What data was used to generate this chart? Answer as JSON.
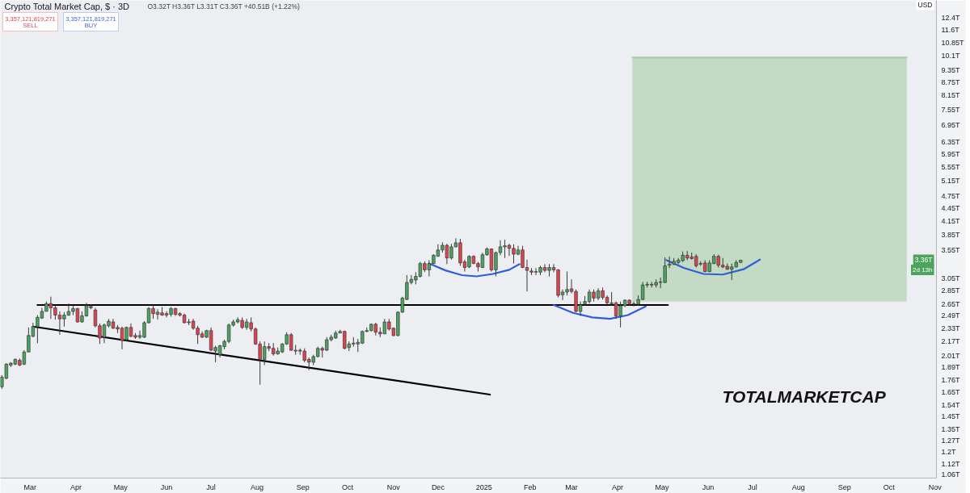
{
  "chart_data": {
    "type": "candlestick",
    "title": "Crypto Total Market Cap, $ · 3D",
    "subtitle": "O3.32T H3.36T L3.31T C3.36T +40.51B (+1.22%)",
    "ylabel": "USD",
    "x": [
      "2024-02-11",
      "2024-02-14",
      "2024-02-17",
      "2024-02-20",
      "2024-02-23",
      "2024-02-26",
      "2024-02-29",
      "2024-03-03",
      "2024-03-06",
      "2024-03-09",
      "2024-03-12",
      "2024-03-15",
      "2024-03-18",
      "2024-03-21",
      "2024-03-24",
      "2024-03-27",
      "2024-03-30",
      "2024-04-02",
      "2024-04-05",
      "2024-04-08",
      "2024-04-11",
      "2024-04-14",
      "2024-04-17",
      "2024-04-20",
      "2024-04-23",
      "2024-04-26",
      "2024-04-29",
      "2024-05-02",
      "2024-05-05",
      "2024-05-08",
      "2024-05-11",
      "2024-05-14",
      "2024-05-17",
      "2024-05-20",
      "2024-05-23",
      "2024-05-26",
      "2024-05-29",
      "2024-06-01",
      "2024-06-04",
      "2024-06-07",
      "2024-06-10",
      "2024-06-13",
      "2024-06-16",
      "2024-06-19",
      "2024-06-22",
      "2024-06-25",
      "2024-06-28",
      "2024-07-01",
      "2024-07-04",
      "2024-07-07",
      "2024-07-10",
      "2024-07-13",
      "2024-07-16",
      "2024-07-19",
      "2024-07-22",
      "2024-07-25",
      "2024-07-28",
      "2024-07-31",
      "2024-08-03",
      "2024-08-06",
      "2024-08-09",
      "2024-08-12",
      "2024-08-15",
      "2024-08-18",
      "2024-08-21",
      "2024-08-24",
      "2024-08-27",
      "2024-08-30",
      "2024-09-02",
      "2024-09-05",
      "2024-09-08",
      "2024-09-11",
      "2024-09-14",
      "2024-09-17",
      "2024-09-20",
      "2024-09-23",
      "2024-09-26",
      "2024-09-29",
      "2024-10-02",
      "2024-10-05",
      "2024-10-08",
      "2024-10-11",
      "2024-10-14",
      "2024-10-17",
      "2024-10-20",
      "2024-10-23",
      "2024-10-26",
      "2024-10-29",
      "2024-11-01",
      "2024-11-04",
      "2024-11-07",
      "2024-11-10",
      "2024-11-13",
      "2024-11-16",
      "2024-11-19",
      "2024-11-22",
      "2024-11-25",
      "2024-11-28",
      "2024-12-01",
      "2024-12-04",
      "2024-12-07",
      "2024-12-10",
      "2024-12-13",
      "2024-12-16",
      "2024-12-19",
      "2024-12-22",
      "2024-12-25",
      "2024-12-28",
      "2024-12-31",
      "2025-01-03",
      "2025-01-06",
      "2025-01-09",
      "2025-01-12",
      "2025-01-15",
      "2025-01-18",
      "2025-01-21",
      "2025-01-24",
      "2025-01-27",
      "2025-01-30",
      "2025-02-02",
      "2025-02-05",
      "2025-02-08",
      "2025-02-11",
      "2025-02-14",
      "2025-02-17",
      "2025-02-20",
      "2025-02-23",
      "2025-02-26",
      "2025-03-01",
      "2025-03-04",
      "2025-03-07",
      "2025-03-10",
      "2025-03-13",
      "2025-03-16",
      "2025-03-19",
      "2025-03-22",
      "2025-03-25",
      "2025-03-28",
      "2025-03-31",
      "2025-04-03",
      "2025-04-06",
      "2025-04-09",
      "2025-04-12",
      "2025-04-15",
      "2025-04-18",
      "2025-04-21",
      "2025-04-24",
      "2025-04-27",
      "2025-04-30",
      "2025-05-03",
      "2025-05-06",
      "2025-05-09",
      "2025-05-12",
      "2025-05-15",
      "2025-05-18",
      "2025-05-21",
      "2025-05-24",
      "2025-05-27",
      "2025-05-30",
      "2025-06-02",
      "2025-06-05",
      "2025-06-08",
      "2025-06-11",
      "2025-06-14",
      "2025-06-17",
      "2025-06-20",
      "2025-06-23"
    ],
    "ohlc": [
      [
        1.7,
        1.81,
        1.68,
        1.79
      ],
      [
        1.78,
        1.93,
        1.77,
        1.92
      ],
      [
        1.91,
        1.94,
        1.89,
        1.93
      ],
      [
        1.92,
        1.98,
        1.91,
        1.97
      ],
      [
        1.96,
        1.98,
        1.9,
        1.91
      ],
      [
        1.92,
        2.07,
        1.91,
        2.05
      ],
      [
        2.05,
        2.34,
        2.05,
        2.24
      ],
      [
        2.23,
        2.4,
        2.22,
        2.35
      ],
      [
        2.35,
        2.5,
        2.15,
        2.47
      ],
      [
        2.46,
        2.6,
        2.45,
        2.55
      ],
      [
        2.55,
        2.69,
        2.55,
        2.66
      ],
      [
        2.66,
        2.76,
        2.45,
        2.6
      ],
      [
        2.6,
        2.63,
        2.44,
        2.5
      ],
      [
        2.5,
        2.55,
        2.25,
        2.45
      ],
      [
        2.45,
        2.54,
        2.35,
        2.5
      ],
      [
        2.5,
        2.66,
        2.49,
        2.55
      ],
      [
        2.55,
        2.63,
        2.5,
        2.59
      ],
      [
        2.59,
        2.6,
        2.4,
        2.41
      ],
      [
        2.41,
        2.55,
        2.4,
        2.49
      ],
      [
        2.49,
        2.67,
        2.48,
        2.63
      ],
      [
        2.62,
        2.65,
        2.58,
        2.6
      ],
      [
        2.57,
        2.6,
        2.34,
        2.36
      ],
      [
        2.36,
        2.39,
        2.14,
        2.21
      ],
      [
        2.22,
        2.39,
        2.15,
        2.37
      ],
      [
        2.36,
        2.45,
        2.34,
        2.42
      ],
      [
        2.41,
        2.45,
        2.32,
        2.33
      ],
      [
        2.34,
        2.37,
        2.27,
        2.32
      ],
      [
        2.33,
        2.35,
        2.08,
        2.18
      ],
      [
        2.19,
        2.35,
        2.17,
        2.34
      ],
      [
        2.34,
        2.39,
        2.22,
        2.23
      ],
      [
        2.24,
        2.27,
        2.2,
        2.22
      ],
      [
        2.22,
        2.3,
        2.2,
        2.24
      ],
      [
        2.22,
        2.42,
        2.21,
        2.4
      ],
      [
        2.4,
        2.61,
        2.39,
        2.59
      ],
      [
        2.59,
        2.63,
        2.45,
        2.52
      ],
      [
        2.51,
        2.58,
        2.44,
        2.54
      ],
      [
        2.53,
        2.61,
        2.49,
        2.5
      ],
      [
        2.52,
        2.55,
        2.47,
        2.5
      ],
      [
        2.51,
        2.61,
        2.48,
        2.59
      ],
      [
        2.59,
        2.6,
        2.49,
        2.51
      ],
      [
        2.52,
        2.54,
        2.48,
        2.5
      ],
      [
        2.5,
        2.52,
        2.39,
        2.4
      ],
      [
        2.4,
        2.45,
        2.37,
        2.41
      ],
      [
        2.42,
        2.45,
        2.31,
        2.33
      ],
      [
        2.33,
        2.36,
        2.14,
        2.25
      ],
      [
        2.26,
        2.29,
        2.21,
        2.22
      ],
      [
        2.22,
        2.31,
        2.21,
        2.3
      ],
      [
        2.3,
        2.34,
        2.06,
        2.07
      ],
      [
        2.06,
        2.12,
        1.94,
        2.1
      ],
      [
        2.02,
        2.13,
        1.99,
        2.12
      ],
      [
        2.11,
        2.19,
        2.08,
        2.17
      ],
      [
        2.17,
        2.39,
        2.15,
        2.37
      ],
      [
        2.37,
        2.44,
        2.35,
        2.41
      ],
      [
        2.41,
        2.47,
        2.39,
        2.44
      ],
      [
        2.43,
        2.47,
        2.32,
        2.34
      ],
      [
        2.34,
        2.45,
        2.31,
        2.41
      ],
      [
        2.4,
        2.47,
        2.29,
        2.32
      ],
      [
        2.32,
        2.34,
        2.13,
        2.14
      ],
      [
        2.14,
        2.17,
        1.72,
        1.97
      ],
      [
        1.97,
        2.17,
        1.91,
        2.11
      ],
      [
        2.11,
        2.15,
        2.06,
        2.09
      ],
      [
        2.09,
        2.15,
        2.01,
        2.03
      ],
      [
        2.03,
        2.1,
        2.02,
        2.06
      ],
      [
        2.05,
        2.15,
        2.04,
        2.14
      ],
      [
        2.14,
        2.28,
        2.13,
        2.25
      ],
      [
        2.25,
        2.27,
        2.06,
        2.07
      ],
      [
        2.06,
        2.13,
        2.02,
        2.07
      ],
      [
        2.07,
        2.09,
        2.02,
        2.06
      ],
      [
        2.06,
        2.09,
        1.94,
        1.96
      ],
      [
        1.97,
        1.99,
        1.86,
        1.94
      ],
      [
        1.94,
        2.02,
        1.91,
        2.0
      ],
      [
        2.0,
        2.11,
        1.99,
        2.09
      ],
      [
        2.09,
        2.11,
        1.99,
        2.07
      ],
      [
        2.07,
        2.22,
        2.06,
        2.19
      ],
      [
        2.19,
        2.25,
        2.17,
        2.22
      ],
      [
        2.21,
        2.3,
        2.2,
        2.27
      ],
      [
        2.27,
        2.31,
        2.27,
        2.29
      ],
      [
        2.29,
        2.3,
        2.08,
        2.09
      ],
      [
        2.1,
        2.17,
        2.06,
        2.14
      ],
      [
        2.14,
        2.22,
        2.11,
        2.15
      ],
      [
        2.14,
        2.2,
        2.05,
        2.16
      ],
      [
        2.15,
        2.3,
        2.14,
        2.29
      ],
      [
        2.29,
        2.34,
        2.28,
        2.3
      ],
      [
        2.3,
        2.39,
        2.29,
        2.38
      ],
      [
        2.38,
        2.4,
        2.24,
        2.28
      ],
      [
        2.28,
        2.34,
        2.22,
        2.26
      ],
      [
        2.26,
        2.45,
        2.26,
        2.41
      ],
      [
        2.41,
        2.45,
        2.3,
        2.32
      ],
      [
        2.33,
        2.34,
        2.23,
        2.24
      ],
      [
        2.24,
        2.55,
        2.23,
        2.54
      ],
      [
        2.54,
        2.76,
        2.53,
        2.74
      ],
      [
        2.72,
        3.1,
        2.71,
        2.98
      ],
      [
        2.98,
        3.1,
        2.95,
        3.03
      ],
      [
        3.02,
        3.15,
        2.95,
        3.08
      ],
      [
        3.08,
        3.33,
        3.06,
        3.3
      ],
      [
        3.3,
        3.34,
        3.15,
        3.19
      ],
      [
        3.19,
        3.36,
        3.08,
        3.3
      ],
      [
        3.3,
        3.47,
        3.29,
        3.45
      ],
      [
        3.43,
        3.66,
        3.43,
        3.55
      ],
      [
        3.55,
        3.7,
        3.5,
        3.64
      ],
      [
        3.64,
        3.67,
        3.29,
        3.4
      ],
      [
        3.4,
        3.67,
        3.37,
        3.61
      ],
      [
        3.61,
        3.78,
        3.6,
        3.69
      ],
      [
        3.69,
        3.77,
        3.26,
        3.31
      ],
      [
        3.33,
        3.37,
        3.16,
        3.23
      ],
      [
        3.24,
        3.45,
        3.22,
        3.43
      ],
      [
        3.43,
        3.45,
        3.29,
        3.3
      ],
      [
        3.3,
        3.33,
        3.16,
        3.24
      ],
      [
        3.23,
        3.5,
        3.22,
        3.46
      ],
      [
        3.46,
        3.6,
        3.44,
        3.57
      ],
      [
        3.57,
        3.58,
        3.16,
        3.19
      ],
      [
        3.19,
        3.52,
        3.08,
        3.5
      ],
      [
        3.5,
        3.74,
        3.45,
        3.61
      ],
      [
        3.61,
        3.75,
        3.4,
        3.63
      ],
      [
        3.64,
        3.67,
        3.44,
        3.58
      ],
      [
        3.58,
        3.66,
        3.3,
        3.47
      ],
      [
        3.47,
        3.63,
        3.45,
        3.55
      ],
      [
        3.55,
        3.63,
        3.22,
        3.23
      ],
      [
        3.23,
        3.37,
        2.84,
        3.18
      ],
      [
        3.17,
        3.22,
        3.1,
        3.15
      ],
      [
        3.15,
        3.22,
        3.1,
        3.16
      ],
      [
        3.15,
        3.26,
        3.1,
        3.23
      ],
      [
        3.23,
        3.29,
        3.15,
        3.18
      ],
      [
        3.18,
        3.29,
        3.08,
        3.23
      ],
      [
        3.23,
        3.29,
        3.15,
        3.19
      ],
      [
        3.19,
        3.2,
        2.75,
        2.78
      ],
      [
        2.79,
        2.87,
        2.71,
        2.83
      ],
      [
        2.83,
        3.16,
        2.78,
        2.87
      ],
      [
        2.88,
        3.03,
        2.81,
        2.84
      ],
      [
        2.84,
        2.87,
        2.54,
        2.55
      ],
      [
        2.55,
        2.69,
        2.49,
        2.64
      ],
      [
        2.66,
        2.77,
        2.63,
        2.69
      ],
      [
        2.69,
        2.87,
        2.66,
        2.83
      ],
      [
        2.83,
        2.87,
        2.69,
        2.74
      ],
      [
        2.74,
        2.89,
        2.71,
        2.85
      ],
      [
        2.85,
        2.9,
        2.72,
        2.75
      ],
      [
        2.75,
        2.78,
        2.65,
        2.67
      ],
      [
        2.66,
        2.83,
        2.63,
        2.67
      ],
      [
        2.67,
        2.69,
        2.45,
        2.49
      ],
      [
        2.49,
        2.69,
        2.34,
        2.63
      ],
      [
        2.63,
        2.72,
        2.61,
        2.71
      ],
      [
        2.71,
        2.72,
        2.63,
        2.66
      ],
      [
        2.66,
        2.69,
        2.62,
        2.65
      ],
      [
        2.65,
        2.78,
        2.63,
        2.72
      ],
      [
        2.72,
        2.99,
        2.71,
        2.94
      ],
      [
        2.94,
        2.99,
        2.9,
        2.95
      ],
      [
        2.95,
        2.99,
        2.9,
        2.94
      ],
      [
        2.94,
        3.03,
        2.9,
        2.98
      ],
      [
        2.98,
        3.06,
        2.89,
        2.99
      ],
      [
        2.98,
        3.41,
        2.97,
        3.26
      ],
      [
        3.27,
        3.43,
        3.22,
        3.29
      ],
      [
        3.29,
        3.4,
        3.27,
        3.34
      ],
      [
        3.32,
        3.4,
        3.29,
        3.36
      ],
      [
        3.35,
        3.52,
        3.33,
        3.45
      ],
      [
        3.45,
        3.53,
        3.36,
        3.4
      ],
      [
        3.42,
        3.5,
        3.37,
        3.39
      ],
      [
        3.43,
        3.47,
        3.23,
        3.26
      ],
      [
        3.29,
        3.34,
        3.26,
        3.3
      ],
      [
        3.31,
        3.36,
        3.15,
        3.16
      ],
      [
        3.16,
        3.36,
        3.15,
        3.31
      ],
      [
        3.3,
        3.47,
        3.29,
        3.43
      ],
      [
        3.43,
        3.46,
        3.23,
        3.27
      ],
      [
        3.27,
        3.4,
        3.22,
        3.24
      ],
      [
        3.25,
        3.3,
        3.19,
        3.2
      ],
      [
        3.2,
        3.3,
        3.02,
        3.24
      ],
      [
        3.24,
        3.36,
        3.23,
        3.32
      ],
      [
        3.32,
        3.36,
        3.31,
        3.36
      ]
    ],
    "colors": [
      "#4ca35e",
      "#4ca35e",
      "#4ca35e",
      "#4ca35e",
      "#e0434f",
      "#4ca35e",
      "#4ca35e",
      "#4ca35e",
      "#4ca35e",
      "#4ca35e",
      "#4ca35e",
      "#e0434f",
      "#e0434f",
      "#e0434f",
      "#4ca35e",
      "#4ca35e",
      "#4ca35e",
      "#e0434f",
      "#4ca35e",
      "#4ca35e",
      "#e0434f",
      "#e0434f",
      "#e0434f",
      "#4ca35e",
      "#4ca35e",
      "#e0434f",
      "#e0434f",
      "#e0434f",
      "#4ca35e",
      "#e0434f",
      "#e0434f",
      "#4ca35e",
      "#4ca35e",
      "#4ca35e",
      "#e0434f",
      "#4ca35e",
      "#e0434f",
      "#e0434f",
      "#4ca35e",
      "#e0434f",
      "#e0434f",
      "#e0434f",
      "#4ca35e",
      "#e0434f",
      "#e0434f",
      "#e0434f",
      "#4ca35e",
      "#e0434f",
      "#4ca35e",
      "#4ca35e",
      "#4ca35e",
      "#4ca35e",
      "#4ca35e",
      "#4ca35e",
      "#e0434f",
      "#4ca35e",
      "#e0434f",
      "#e0434f",
      "#e0434f",
      "#4ca35e",
      "#e0434f",
      "#e0434f",
      "#4ca35e",
      "#4ca35e",
      "#4ca35e",
      "#e0434f",
      "#4ca35e",
      "#e0434f",
      "#e0434f",
      "#e0434f",
      "#4ca35e",
      "#4ca35e",
      "#e0434f",
      "#4ca35e",
      "#4ca35e",
      "#4ca35e",
      "#4ca35e",
      "#e0434f",
      "#4ca35e",
      "#4ca35e",
      "#4ca35e",
      "#4ca35e",
      "#4ca35e",
      "#4ca35e",
      "#e0434f",
      "#e0434f",
      "#4ca35e",
      "#e0434f",
      "#e0434f",
      "#4ca35e",
      "#4ca35e",
      "#4ca35e",
      "#4ca35e",
      "#4ca35e",
      "#4ca35e",
      "#e0434f",
      "#4ca35e",
      "#4ca35e",
      "#4ca35e",
      "#4ca35e",
      "#e0434f",
      "#4ca35e",
      "#4ca35e",
      "#e0434f",
      "#e0434f",
      "#4ca35e",
      "#e0434f",
      "#e0434f",
      "#4ca35e",
      "#4ca35e",
      "#e0434f",
      "#4ca35e",
      "#4ca35e",
      "#4ca35e",
      "#e0434f",
      "#e0434f",
      "#4ca35e",
      "#e0434f",
      "#e0434f",
      "#e0434f",
      "#4ca35e",
      "#4ca35e",
      "#e0434f",
      "#4ca35e",
      "#e0434f",
      "#e0434f",
      "#4ca35e",
      "#4ca35e",
      "#e0434f",
      "#e0434f",
      "#4ca35e",
      "#4ca35e",
      "#4ca35e",
      "#e0434f",
      "#4ca35e",
      "#e0434f",
      "#e0434f",
      "#4ca35e",
      "#e0434f",
      "#4ca35e",
      "#4ca35e",
      "#e0434f",
      "#e0434f",
      "#4ca35e",
      "#4ca35e",
      "#4ca35e",
      "#e0434f",
      "#4ca35e",
      "#4ca35e",
      "#4ca35e",
      "#4ca35e",
      "#4ca35e",
      "#4ca35e",
      "#4ca35e",
      "#e0434f",
      "#e0434f",
      "#e0434f",
      "#4ca35e",
      "#e0434f",
      "#4ca35e",
      "#4ca35e",
      "#e0434f",
      "#e0434f",
      "#e0434f",
      "#4ca35e",
      "#4ca35e",
      "#4ca35e"
    ],
    "series": [
      {
        "type": "line",
        "x": [
          "2025-04-11",
          "2025-10-13"
        ],
        "values": [
          10.0,
          10.0
        ],
        "lower": [
          2.69,
          2.69
        ],
        "upper": [
          10.0,
          10.0
        ],
        "color": "#a9cfa9"
      },
      {
        "type": "line",
        "x": [
          "2024-03-03",
          "2025-01-05"
        ],
        "values": [
          2.35,
          1.63
        ],
        "color": "#000000"
      },
      {
        "type": "line",
        "x": [
          "2024-03-06",
          "2025-05-05"
        ],
        "values": [
          2.64,
          2.64
        ],
        "color": "#000000"
      },
      {
        "type": "line",
        "x": [
          "2024-11-25",
          "2024-12-06",
          "2024-12-17",
          "2024-12-27",
          "2025-01-07",
          "2025-01-18",
          "2025-01-25"
        ],
        "values": [
          3.3,
          3.18,
          3.1,
          3.08,
          3.12,
          3.19,
          3.29
        ],
        "color": "#2e5fd6"
      },
      {
        "type": "line",
        "x": [
          "2025-02-17",
          "2025-03-02",
          "2025-03-15",
          "2025-03-27",
          "2025-04-08",
          "2025-04-20"
        ],
        "values": [
          2.64,
          2.53,
          2.47,
          2.45,
          2.5,
          2.62
        ],
        "color": "#2e5fd6"
      },
      {
        "type": "line",
        "x": [
          "2025-05-04",
          "2025-05-16",
          "2025-05-29",
          "2025-06-11",
          "2025-06-25",
          "2025-07-06"
        ],
        "values": [
          3.36,
          3.22,
          3.12,
          3.11,
          3.2,
          3.37
        ],
        "color": "#2e5fd6"
      }
    ],
    "xlim": [
      "2024-02-10",
      "2025-11-02"
    ],
    "xticks": [
      {
        "value": "2024-03-01",
        "label": "Mar"
      },
      {
        "value": "2024-04-01",
        "label": "Apr"
      },
      {
        "value": "2024-05-01",
        "label": "May"
      },
      {
        "value": "2024-06-01",
        "label": "Jun"
      },
      {
        "value": "2024-07-01",
        "label": "Jul"
      },
      {
        "value": "2024-08-01",
        "label": "Aug"
      },
      {
        "value": "2024-09-01",
        "label": "Sep"
      },
      {
        "value": "2024-10-01",
        "label": "Oct"
      },
      {
        "value": "2024-11-01",
        "label": "Nov"
      },
      {
        "value": "2024-12-01",
        "label": "Dec"
      },
      {
        "value": "2025-01-01",
        "label": "2025"
      },
      {
        "value": "2025-02-01",
        "label": "Feb"
      },
      {
        "value": "2025-03-01",
        "label": "Mar"
      },
      {
        "value": "2025-04-01",
        "label": "Apr"
      },
      {
        "value": "2025-05-01",
        "label": "May"
      },
      {
        "value": "2025-06-01",
        "label": "Jun"
      },
      {
        "value": "2025-07-01",
        "label": "Jul"
      },
      {
        "value": "2025-08-01",
        "label": "Aug"
      },
      {
        "value": "2025-09-01",
        "label": "Sep"
      },
      {
        "value": "2025-10-01",
        "label": "Oct"
      },
      {
        "value": "2025-11-01",
        "label": "Nov"
      }
    ],
    "ylim": [
      1.04,
      13.6
    ],
    "log": true,
    "yticks": [
      {
        "value": 1.06,
        "label": "1.06T"
      },
      {
        "value": 1.12,
        "label": "1.12T"
      },
      {
        "value": 1.2,
        "label": "1.2T"
      },
      {
        "value": 1.27,
        "label": "1.27T"
      },
      {
        "value": 1.35,
        "label": "1.35T"
      },
      {
        "value": 1.45,
        "label": "1.45T"
      },
      {
        "value": 1.54,
        "label": "1.54T"
      },
      {
        "value": 1.65,
        "label": "1.65T"
      },
      {
        "value": 1.76,
        "label": "1.76T"
      },
      {
        "value": 1.89,
        "label": "1.89T"
      },
      {
        "value": 2.01,
        "label": "2.01T"
      },
      {
        "value": 2.17,
        "label": "2.17T"
      },
      {
        "value": 2.33,
        "label": "2.33T"
      },
      {
        "value": 2.49,
        "label": "2.49T"
      },
      {
        "value": 2.65,
        "label": "2.65T"
      },
      {
        "value": 2.85,
        "label": "2.85T"
      },
      {
        "value": 3.05,
        "label": "3.05T"
      },
      {
        "value": 3.55,
        "label": "3.55T"
      },
      {
        "value": 3.85,
        "label": "3.85T"
      },
      {
        "value": 4.15,
        "label": "4.15T"
      },
      {
        "value": 4.45,
        "label": "4.45T"
      },
      {
        "value": 4.75,
        "label": "4.75T"
      },
      {
        "value": 5.15,
        "label": "5.15T"
      },
      {
        "value": 5.55,
        "label": "5.55T"
      },
      {
        "value": 5.95,
        "label": "5.95T"
      },
      {
        "value": 6.35,
        "label": "6.35T"
      },
      {
        "value": 6.95,
        "label": "6.95T"
      },
      {
        "value": 7.55,
        "label": "7.55T"
      },
      {
        "value": 8.15,
        "label": "8.15T"
      },
      {
        "value": 8.75,
        "label": "8.75T"
      },
      {
        "value": 9.35,
        "label": "9.35T"
      },
      {
        "value": 10.1,
        "label": "10.1T"
      },
      {
        "value": 10.85,
        "label": "10.85T"
      },
      {
        "value": 11.6,
        "label": "11.6T"
      },
      {
        "value": 12.4,
        "label": "12.4T"
      }
    ],
    "annotations": [
      "3,357,121,819,271",
      "SELL",
      "3,357,121,819,271",
      "BUY",
      "TOTALMARKETCAP",
      {
        "text": "3.36T",
        "y": 3.36
      },
      "2d 13h"
    ]
  }
}
